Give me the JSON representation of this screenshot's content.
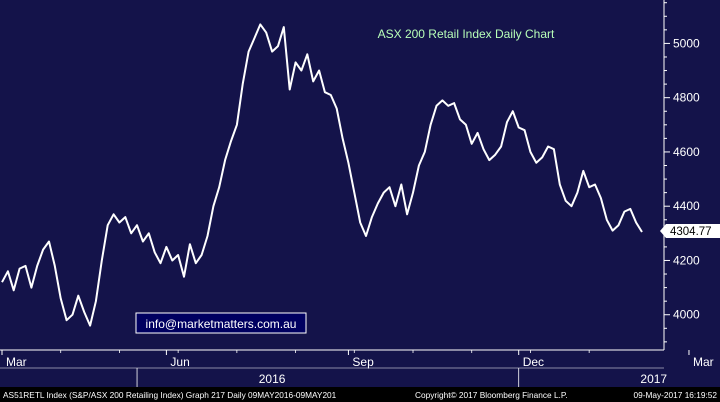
{
  "chart_data": {
    "type": "line",
    "title": "ASX 200 Retail Index Daily Chart",
    "watermark": "info@marketmatters.com.au",
    "footer": {
      "left": "AS51RETL Index (S&P/ASX 200 Retailing Index) Graph 217  Daily 09MAY2016-09MAY201",
      "center": "Copyright© 2017 Bloomberg Finance L.P.",
      "right": "09-May-2017 16:19:52"
    },
    "last_value_label": "4304.77",
    "ylim": [
      3870,
      5160
    ],
    "yticks": [
      4000,
      4200,
      4400,
      4600,
      4800,
      5000
    ],
    "x_months": [
      {
        "label": "Mar",
        "x": 0
      },
      {
        "label": "Jun",
        "x": 28
      },
      {
        "label": "Sep",
        "x": 59
      },
      {
        "label": "Dec",
        "x": 88
      },
      {
        "label": "Mar",
        "x": 117
      }
    ],
    "x_years": [
      {
        "label": "2016",
        "x": 46
      },
      {
        "label": "2017",
        "x": 111
      }
    ],
    "colors": {
      "background": "#14134a",
      "line": "#ffffff",
      "title": "#b8ffb8",
      "axis": "#ffffff"
    },
    "series": [
      {
        "values": [
          [
            0,
            4120
          ],
          [
            1,
            4160
          ],
          [
            2,
            4090
          ],
          [
            3,
            4170
          ],
          [
            4,
            4180
          ],
          [
            5,
            4100
          ],
          [
            6,
            4180
          ],
          [
            7,
            4240
          ],
          [
            8,
            4270
          ],
          [
            9,
            4180
          ],
          [
            10,
            4060
          ],
          [
            11,
            3980
          ],
          [
            12,
            4000
          ],
          [
            13,
            4070
          ],
          [
            14,
            4010
          ],
          [
            15,
            3960
          ],
          [
            16,
            4050
          ],
          [
            17,
            4200
          ],
          [
            18,
            4330
          ],
          [
            19,
            4370
          ],
          [
            20,
            4340
          ],
          [
            21,
            4360
          ],
          [
            22,
            4300
          ],
          [
            23,
            4330
          ],
          [
            24,
            4270
          ],
          [
            25,
            4300
          ],
          [
            26,
            4230
          ],
          [
            27,
            4190
          ],
          [
            28,
            4250
          ],
          [
            29,
            4200
          ],
          [
            30,
            4220
          ],
          [
            31,
            4140
          ],
          [
            32,
            4260
          ],
          [
            33,
            4190
          ],
          [
            34,
            4220
          ],
          [
            35,
            4290
          ],
          [
            36,
            4400
          ],
          [
            37,
            4470
          ],
          [
            38,
            4570
          ],
          [
            39,
            4640
          ],
          [
            40,
            4700
          ],
          [
            41,
            4850
          ],
          [
            42,
            4970
          ],
          [
            43,
            5020
          ],
          [
            44,
            5070
          ],
          [
            45,
            5040
          ],
          [
            46,
            4970
          ],
          [
            47,
            4990
          ],
          [
            48,
            5060
          ],
          [
            49,
            4830
          ],
          [
            50,
            4930
          ],
          [
            51,
            4900
          ],
          [
            52,
            4960
          ],
          [
            53,
            4860
          ],
          [
            54,
            4900
          ],
          [
            55,
            4820
          ],
          [
            56,
            4810
          ],
          [
            57,
            4760
          ],
          [
            58,
            4650
          ],
          [
            59,
            4560
          ],
          [
            60,
            4450
          ],
          [
            61,
            4340
          ],
          [
            62,
            4290
          ],
          [
            63,
            4360
          ],
          [
            64,
            4410
          ],
          [
            65,
            4450
          ],
          [
            66,
            4470
          ],
          [
            67,
            4400
          ],
          [
            68,
            4480
          ],
          [
            69,
            4370
          ],
          [
            70,
            4450
          ],
          [
            71,
            4550
          ],
          [
            72,
            4600
          ],
          [
            73,
            4700
          ],
          [
            74,
            4770
          ],
          [
            75,
            4790
          ],
          [
            76,
            4770
          ],
          [
            77,
            4780
          ],
          [
            78,
            4720
          ],
          [
            79,
            4700
          ],
          [
            80,
            4630
          ],
          [
            81,
            4670
          ],
          [
            82,
            4610
          ],
          [
            83,
            4570
          ],
          [
            84,
            4590
          ],
          [
            85,
            4620
          ],
          [
            86,
            4710
          ],
          [
            87,
            4750
          ],
          [
            88,
            4690
          ],
          [
            89,
            4680
          ],
          [
            90,
            4600
          ],
          [
            91,
            4560
          ],
          [
            92,
            4580
          ],
          [
            93,
            4620
          ],
          [
            94,
            4610
          ],
          [
            95,
            4480
          ],
          [
            96,
            4420
          ],
          [
            97,
            4400
          ],
          [
            98,
            4450
          ],
          [
            99,
            4530
          ],
          [
            100,
            4470
          ],
          [
            101,
            4480
          ],
          [
            102,
            4430
          ],
          [
            103,
            4350
          ],
          [
            104,
            4310
          ],
          [
            105,
            4330
          ],
          [
            106,
            4380
          ],
          [
            107,
            4390
          ],
          [
            108,
            4340
          ],
          [
            109,
            4305
          ]
        ]
      }
    ]
  }
}
